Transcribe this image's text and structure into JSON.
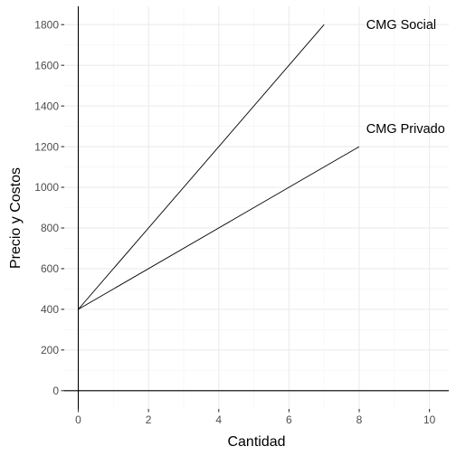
{
  "chart_data": {
    "type": "line",
    "title": "",
    "xlabel": "Cantidad",
    "ylabel": "Precio y Costos",
    "xlim": [
      -0.4,
      10.55
    ],
    "ylim": [
      -90,
      1890
    ],
    "x_ticks": [
      0,
      2,
      4,
      6,
      8,
      10
    ],
    "y_ticks": [
      0,
      200,
      400,
      600,
      800,
      1000,
      1200,
      1400,
      1600,
      1800
    ],
    "x_tick_labels": [
      "0",
      "2",
      "4",
      "6",
      "8",
      "10"
    ],
    "y_tick_labels": [
      "0",
      "200",
      "400",
      "600",
      "800",
      "1000",
      "1200",
      "1400",
      "1600",
      "1800"
    ],
    "grid": true,
    "legend": "none",
    "series": [
      {
        "name": "CMG Social",
        "x": [
          0,
          7
        ],
        "y": [
          400,
          1800
        ]
      },
      {
        "name": "CMG Privado",
        "x": [
          0,
          8
        ],
        "y": [
          400,
          1200
        ]
      }
    ],
    "annotations": [
      {
        "text": "CMG Social",
        "x": 8.2,
        "y": 1800
      },
      {
        "text": "CMG Privado",
        "x": 8.2,
        "y": 1290
      }
    ],
    "reference_lines": [
      {
        "axis": "x",
        "value": 0
      },
      {
        "axis": "y",
        "value": 0
      }
    ]
  }
}
